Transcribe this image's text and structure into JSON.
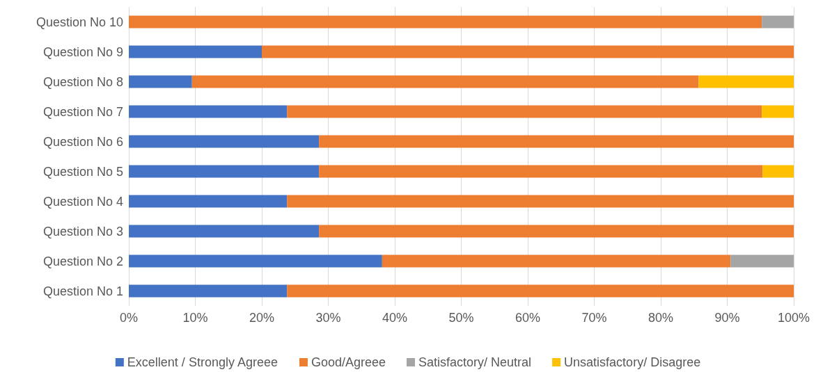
{
  "chart_data": {
    "type": "bar",
    "orientation": "horizontal",
    "stacked": true,
    "categories": [
      "Question No 10",
      "Question No 9",
      "Question No 8",
      "Question No 7",
      "Question No 6",
      "Question No 5",
      "Question No 4",
      "Question No 3",
      "Question No 2",
      "Question No 1"
    ],
    "series": [
      {
        "name": "Excellent / Strongly Agreee",
        "color": "#4472c4",
        "values": [
          null,
          20,
          9.5,
          23.8,
          28.6,
          28.6,
          23.8,
          28.6,
          38.1,
          23.8
        ]
      },
      {
        "name": "Good/Agreee",
        "color": "#ed7d31",
        "values": [
          95.2,
          80,
          76.2,
          71.4,
          71.4,
          66.7,
          76.2,
          71.4,
          52.4,
          76.2
        ]
      },
      {
        "name": "Satisfactory/ Neutral",
        "color": "#a5a5a5",
        "values": [
          4.8,
          null,
          null,
          null,
          null,
          null,
          null,
          null,
          9.5,
          null
        ]
      },
      {
        "name": "Unsatisfactory/ Disagree",
        "color": "#ffc000",
        "values": [
          null,
          null,
          14.3,
          4.8,
          null,
          4.7,
          null,
          null,
          null,
          null
        ]
      }
    ],
    "xlim": [
      0,
      100
    ],
    "xticks": [
      {
        "value": 0,
        "label": "0%"
      },
      {
        "value": 10,
        "label": "10%"
      },
      {
        "value": 20,
        "label": "20%"
      },
      {
        "value": 30,
        "label": "30%"
      },
      {
        "value": 40,
        "label": "40%"
      },
      {
        "value": 50,
        "label": "50%"
      },
      {
        "value": 60,
        "label": "60%"
      },
      {
        "value": 70,
        "label": "70%"
      },
      {
        "value": 80,
        "label": "80%"
      },
      {
        "value": 90,
        "label": "90%"
      },
      {
        "value": 100,
        "label": "100%"
      }
    ],
    "grid": "x",
    "legend": "bottom"
  }
}
